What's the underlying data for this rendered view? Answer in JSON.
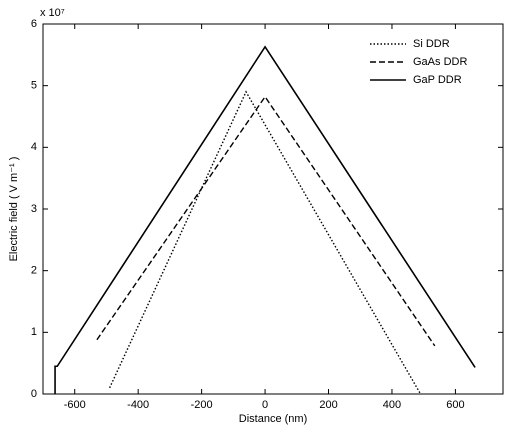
{
  "chart_data": {
    "type": "line",
    "xlabel": "Distance (nm)",
    "ylabel": "Electric field ( V m⁻¹ )",
    "y_multiplier": "x 10⁷",
    "xlim": [
      -700,
      750
    ],
    "xticks": [
      -600,
      -400,
      -200,
      0,
      200,
      400,
      600
    ],
    "ylim": [
      0,
      6
    ],
    "yticks": [
      0,
      1,
      2,
      3,
      4,
      5,
      6
    ],
    "grid": false,
    "legend": "upper right",
    "series": [
      {
        "name": "Si DDR",
        "color": "#000000",
        "style": "dotted",
        "x": [
          -490,
          -60,
          490
        ],
        "values": [
          0.1,
          4.9,
          0
        ]
      },
      {
        "name": "GaAs DDR",
        "color": "#000000",
        "style": "dashed",
        "x": [
          -530,
          0,
          535
        ],
        "values": [
          0.88,
          4.82,
          0.78
        ]
      },
      {
        "name": "GaP DDR",
        "color": "#000000",
        "style": "solid",
        "x": [
          -662,
          -662,
          -655,
          0,
          662
        ],
        "values": [
          0,
          0.45,
          0.45,
          5.63,
          0.43
        ]
      }
    ]
  }
}
